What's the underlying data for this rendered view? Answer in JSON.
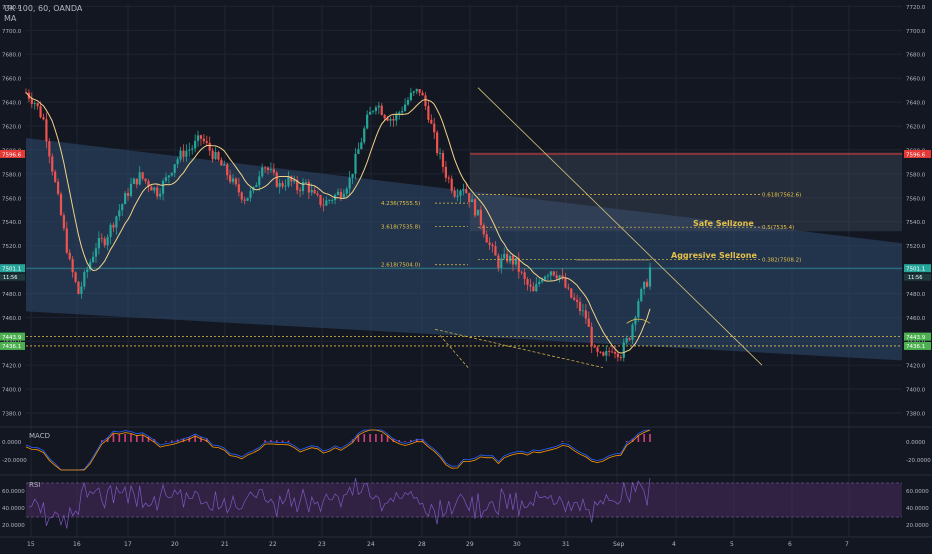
{
  "header": {
    "symbol": "UK 100, 60, OANDA",
    "indicator": "MA"
  },
  "colors": {
    "bg": "#131722",
    "grid": "#1f2433",
    "up": "#26a69a",
    "down": "#ef5350",
    "ma": "#f2d388",
    "fib": "#e5c14a",
    "trend": "#d4c27a",
    "channel": "#2f4d6f",
    "zone": "#4a5568",
    "label_text": "#c9ccd6",
    "axis_text": "#b2b5be",
    "macd": "#2962ff",
    "signal": "#ff9800",
    "hist_pos": "#d43f79",
    "rsi": "#7e57c2",
    "rsi_band": "#4a2b5e",
    "price_red": "#e53935",
    "price_teal": "#26a69a",
    "price_green": "#4caf50"
  },
  "chart_data": [
    {
      "type": "candlestick",
      "title": "UK 100, 60, OANDA",
      "yaxis": {
        "min": 7370,
        "max": 7722,
        "ticks": [
          7380.0,
          7400.0,
          7420.0,
          7440.0,
          7460.0,
          7480.0,
          7500.0,
          7520.0,
          7540.0,
          7560.0,
          7580.0,
          7600.0,
          7620.0,
          7640.0,
          7660.0,
          7680.0,
          7700.0,
          7720.0
        ]
      },
      "xaxis": {
        "labels": [
          "15",
          "16",
          "17",
          "20",
          "21",
          "22",
          "23",
          "24",
          "28",
          "29",
          "30",
          "31",
          "Sep",
          "4",
          "5",
          "6",
          "7"
        ]
      },
      "price_path": [
        [
          0,
          7648
        ],
        [
          3,
          7640
        ],
        [
          6,
          7625
        ],
        [
          9,
          7585
        ],
        [
          12,
          7545
        ],
        [
          15,
          7505
        ],
        [
          18,
          7480
        ],
        [
          21,
          7500
        ],
        [
          24,
          7520
        ],
        [
          27,
          7525
        ],
        [
          30,
          7540
        ],
        [
          33,
          7555
        ],
        [
          36,
          7570
        ],
        [
          39,
          7578
        ],
        [
          42,
          7572
        ],
        [
          45,
          7565
        ],
        [
          48,
          7575
        ],
        [
          51,
          7590
        ],
        [
          54,
          7598
        ],
        [
          57,
          7602
        ],
        [
          60,
          7610
        ],
        [
          63,
          7600
        ],
        [
          66,
          7590
        ],
        [
          69,
          7580
        ],
        [
          72,
          7568
        ],
        [
          75,
          7560
        ],
        [
          78,
          7565
        ],
        [
          81,
          7590
        ],
        [
          84,
          7580
        ],
        [
          87,
          7570
        ],
        [
          90,
          7575
        ],
        [
          93,
          7568
        ],
        [
          96,
          7572
        ],
        [
          99,
          7560
        ],
        [
          102,
          7555
        ],
        [
          105,
          7560
        ],
        [
          108,
          7565
        ],
        [
          111,
          7575
        ],
        [
          114,
          7600
        ],
        [
          117,
          7625
        ],
        [
          120,
          7640
        ],
        [
          123,
          7630
        ],
        [
          126,
          7625
        ],
        [
          129,
          7635
        ],
        [
          132,
          7645
        ],
        [
          135,
          7650
        ],
        [
          138,
          7630
        ],
        [
          141,
          7600
        ],
        [
          144,
          7580
        ],
        [
          147,
          7565
        ],
        [
          150,
          7570
        ],
        [
          153,
          7555
        ],
        [
          156,
          7540
        ],
        [
          159,
          7520
        ],
        [
          162,
          7505
        ],
        [
          165,
          7510
        ],
        [
          168,
          7505
        ],
        [
          171,
          7490
        ],
        [
          174,
          7480
        ],
        [
          177,
          7495
        ],
        [
          180,
          7500
        ],
        [
          183,
          7495
        ],
        [
          186,
          7480
        ],
        [
          189,
          7470
        ],
        [
          192,
          7460
        ],
        [
          195,
          7430
        ],
        [
          198,
          7425
        ],
        [
          201,
          7435
        ],
        [
          204,
          7430
        ],
        [
          207,
          7445
        ],
        [
          210,
          7475
        ],
        [
          213,
          7490
        ],
        [
          214,
          7501
        ]
      ],
      "last_price": "7501.1",
      "last_time": "11:56",
      "price_tags": [
        {
          "value": 7596.6,
          "label": "7596.6",
          "color": "#e53935"
        },
        {
          "value": 7501.1,
          "label": "7501.1",
          "color": "#26a69a"
        },
        {
          "value": 7443.9,
          "label": "7443.9",
          "color": "#4caf50"
        },
        {
          "value": 7436.1,
          "label": "7436.1",
          "color": "#4caf50"
        }
      ],
      "fib_levels_left": [
        {
          "label": "4.236(7555.5)",
          "value": 7555.5
        },
        {
          "label": "3.618(7535.8)",
          "value": 7535.8
        },
        {
          "label": "2.618(7504.0)",
          "value": 7504.0
        }
      ],
      "fib_levels_right": [
        {
          "label": "0.618(7562.6)",
          "value": 7562.6
        },
        {
          "label": "0.5(7535.4)",
          "value": 7535.4
        },
        {
          "label": "0.382(7508.2)",
          "value": 7508.2
        }
      ],
      "annotations": [
        "Safe Sellzone",
        "Aggresive Sellzone"
      ]
    },
    {
      "type": "line",
      "title": "MACD",
      "yaxis": {
        "ticks": [
          "0.0000",
          "-20.0000"
        ]
      }
    },
    {
      "type": "line",
      "title": "RSI",
      "yaxis": {
        "ticks": [
          "60.0000",
          "40.0000",
          "20.0000"
        ]
      }
    }
  ]
}
